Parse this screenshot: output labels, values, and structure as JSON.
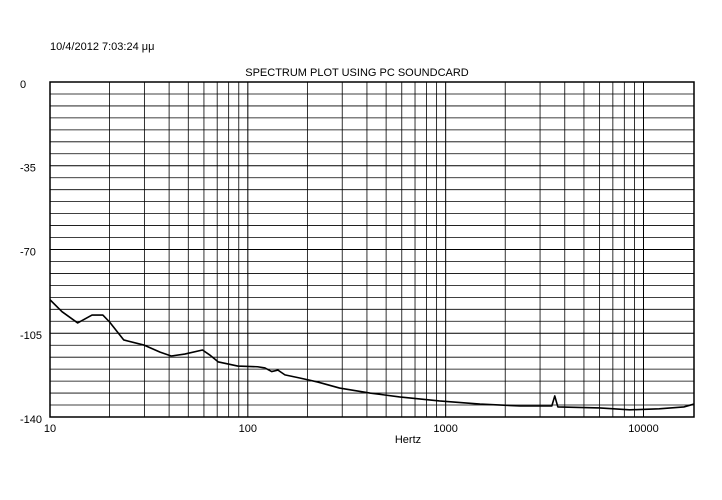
{
  "chart_data": {
    "type": "line",
    "title": "SPECTRUM PLOT USING PC SOUNDCARD",
    "subtitle": "10/4/2012 7:03:24 μμ",
    "x_label": "Hertz",
    "x_scale": "log",
    "grid": true,
    "color": "#000000",
    "x": [
      10,
      11.5,
      13.8,
      16.3,
      18.5,
      20,
      23.6,
      30,
      36,
      41,
      48,
      59,
      64,
      71,
      89,
      112,
      122,
      132,
      142,
      154,
      183,
      226,
      291,
      414,
      585,
      930,
      1490,
      2380,
      3440,
      3560,
      3690,
      6000,
      8500,
      12000,
      16000,
      18000
    ],
    "values": [
      -91,
      -96,
      -100.7,
      -97.4,
      -97.4,
      -100.3,
      -107.8,
      -110,
      -112.9,
      -114.5,
      -113.7,
      -112,
      -114,
      -117,
      -118.7,
      -119,
      -119.5,
      -121,
      -120.4,
      -122.4,
      -123.7,
      -125.4,
      -127.9,
      -130,
      -131.6,
      -133.3,
      -134.6,
      -135.4,
      -135.4,
      -131.2,
      -135.8,
      -136.2,
      -137,
      -136.6,
      -135.8,
      -134.6
    ],
    "xlim": [
      10,
      18000
    ],
    "xticks": [
      10,
      100,
      1000,
      10000
    ],
    "xminorticks": [
      20,
      30,
      40,
      50,
      60,
      70,
      80,
      90,
      200,
      300,
      400,
      500,
      600,
      700,
      800,
      900,
      2000,
      3000,
      4000,
      5000,
      6000,
      7000,
      8000,
      9000
    ],
    "ylim": [
      -140,
      0
    ],
    "yticks": [
      0,
      -35,
      -70,
      -105,
      -140
    ],
    "yminorticks": [
      -5,
      -10,
      -15,
      -20,
      -25,
      -30,
      -40,
      -45,
      -50,
      -55,
      -60,
      -65,
      -75,
      -80,
      -85,
      -90,
      -95,
      -100,
      -110,
      -115,
      -120,
      -125,
      -130,
      -135
    ]
  }
}
